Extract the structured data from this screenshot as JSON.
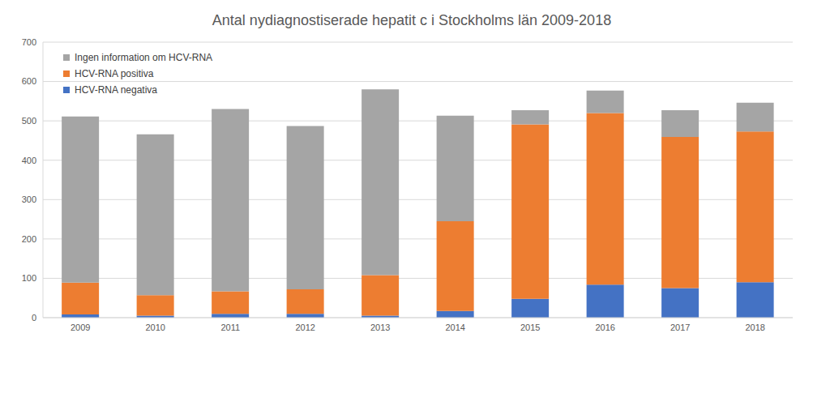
{
  "chart_data": {
    "type": "bar",
    "title": "Antal nydiagnostiserade hepatit c i Stockholms län 2009-2018",
    "categories": [
      "2009",
      "2010",
      "2011",
      "2012",
      "2013",
      "2014",
      "2015",
      "2016",
      "2017",
      "2018"
    ],
    "series": [
      {
        "name": "HCV-RNA negativa",
        "color": "#4472c4",
        "values": [
          8,
          5,
          10,
          10,
          5,
          17,
          48,
          84,
          75,
          90
        ]
      },
      {
        "name": "HCV-RNA positiva",
        "color": "#ed7d31",
        "values": [
          81,
          52,
          57,
          62,
          103,
          228,
          443,
          436,
          384,
          383
        ]
      },
      {
        "name": "Ingen information om HCV-RNA",
        "color": "#a5a5a5",
        "values": [
          422,
          409,
          463,
          415,
          472,
          268,
          36,
          57,
          68,
          73
        ]
      }
    ],
    "ylim": [
      0,
      700
    ],
    "yticks": [
      0,
      100,
      200,
      300,
      400,
      500,
      600,
      700
    ],
    "stacked": true,
    "grid": true,
    "legend": "top-left"
  }
}
